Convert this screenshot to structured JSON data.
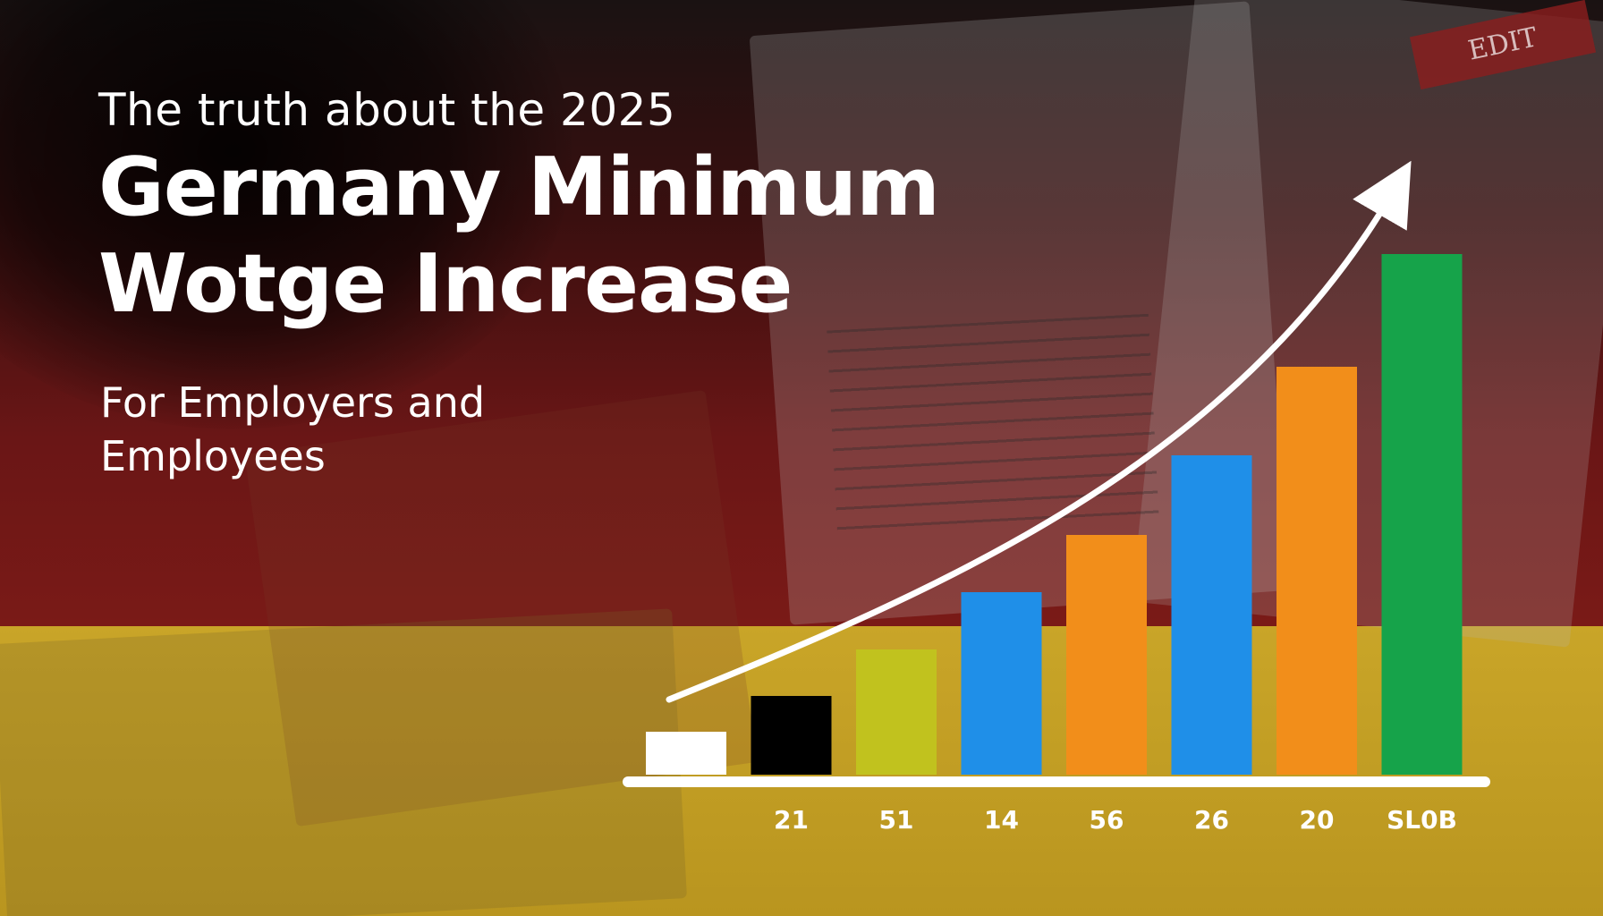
{
  "headline": {
    "line1": "The truth about the 2025",
    "line2": "Germany Minimum",
    "line3": "Wotge Increase"
  },
  "subtitle": {
    "line1": "For Employers and",
    "line2": "Employees"
  },
  "background_text": {
    "tag": "EDIT"
  },
  "chart_data": {
    "type": "bar",
    "categories": [
      "",
      "21",
      "51",
      "14",
      "56",
      "26",
      "20",
      "SL0B"
    ],
    "values": [
      48,
      88,
      140,
      204,
      268,
      357,
      456,
      582
    ],
    "colors": [
      "#ffffff",
      "#000000",
      "#c1c21e",
      "#1f8fe8",
      "#f28e1a",
      "#1f8fe8",
      "#f28e1a",
      "#16a34a"
    ],
    "trend_arrow": true,
    "grid": false,
    "legend": "none"
  }
}
